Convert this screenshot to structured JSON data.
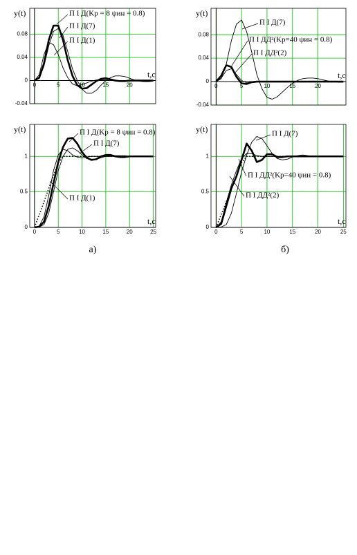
{
  "chart_data": [
    {
      "type": "line",
      "xlabel": "t,c",
      "ylabel": "y(t)",
      "grid": true,
      "xlim": [
        -1,
        25.5
      ],
      "ylim": [
        -0.04,
        0.125
      ],
      "xticks": [
        0,
        5,
        10,
        15,
        20
      ],
      "yticks": [
        -0.04,
        0,
        0.04,
        0.08
      ],
      "x": [
        0,
        1,
        2,
        3,
        4,
        5,
        6,
        7,
        8,
        9,
        10,
        11,
        12,
        13,
        14,
        15,
        16,
        17,
        18,
        19,
        20,
        21,
        22,
        23,
        24,
        25
      ],
      "series": [
        {
          "name": "П І Д(Kp = 8  ψин = 0.8)",
          "color": "#000000",
          "style": "thick",
          "values": [
            0,
            0.005,
            0.03,
            0.07,
            0.095,
            0.095,
            0.07,
            0.035,
            0.008,
            -0.008,
            -0.014,
            -0.013,
            -0.007,
            -0.001,
            0.003,
            0.004,
            0.002,
            0,
            -0.001,
            -0.001,
            0,
            0,
            0,
            0,
            0,
            0
          ]
        },
        {
          "name": "П І Д(7)",
          "color": "#000000",
          "style": "thin",
          "values": [
            0,
            0.004,
            0.025,
            0.06,
            0.085,
            0.09,
            0.078,
            0.05,
            0.02,
            0,
            -0.015,
            -0.022,
            -0.022,
            -0.017,
            -0.008,
            0,
            0.005,
            0.008,
            0.008,
            0.007,
            0.004,
            0.001,
            -0.001,
            -0.002,
            -0.002,
            -0.001
          ]
        },
        {
          "name": "П І Д(1)",
          "color": "#000000",
          "style": "thin",
          "values": [
            0,
            0.01,
            0.045,
            0.066,
            0.062,
            0.045,
            0.022,
            0.005,
            -0.006,
            -0.009,
            -0.007,
            -0.004,
            -0.001,
            0.001,
            0.001,
            0.001,
            0,
            0,
            0,
            0,
            0,
            0,
            0,
            0,
            0,
            0
          ]
        }
      ]
    },
    {
      "type": "line",
      "xlabel": "t,c",
      "ylabel": "y(t)",
      "grid": true,
      "xlim": [
        -1,
        25.5
      ],
      "ylim": [
        -0.04,
        0.125
      ],
      "xticks": [
        0,
        5,
        10,
        15,
        20
      ],
      "yticks": [
        -0.04,
        0,
        0.04,
        0.08
      ],
      "x": [
        0,
        1,
        2,
        3,
        4,
        5,
        6,
        7,
        8,
        9,
        10,
        11,
        12,
        13,
        14,
        15,
        16,
        17,
        18,
        19,
        20,
        21,
        22,
        23,
        24,
        25
      ],
      "series": [
        {
          "name": "П І Д(7)",
          "color": "#000000",
          "style": "thin",
          "values": [
            0,
            0.005,
            0.03,
            0.07,
            0.098,
            0.105,
            0.085,
            0.05,
            0.012,
            -0.012,
            -0.027,
            -0.03,
            -0.026,
            -0.018,
            -0.01,
            -0.003,
            0.002,
            0.005,
            0.006,
            0.006,
            0.005,
            0.003,
            0.001,
            0,
            -0.001,
            -0.001
          ]
        },
        {
          "name": "П І ДД²(Kp=40  ψин = 0.8)",
          "color": "#000000",
          "style": "thick",
          "values": [
            0,
            0.01,
            0.028,
            0.025,
            0.008,
            -0.003,
            -0.004,
            -0.001,
            0,
            0,
            0,
            0,
            0,
            0,
            0,
            0,
            0,
            0,
            0,
            0,
            0,
            0,
            0,
            0,
            0,
            0
          ]
        },
        {
          "name": "П І ДД²(2)",
          "color": "#000000",
          "style": "thin",
          "values": [
            0,
            0.006,
            0.019,
            0.022,
            0.012,
            0.002,
            -0.002,
            -0.001,
            0,
            0,
            0,
            0,
            0,
            0,
            0,
            0,
            0,
            0,
            0,
            0,
            0,
            0,
            0,
            0,
            0,
            0
          ]
        }
      ]
    },
    {
      "type": "line",
      "xlabel": "t,c",
      "ylabel": "y(t)",
      "caption": "а)",
      "grid": true,
      "xlim": [
        -1,
        25.5
      ],
      "ylim": [
        0,
        1.45
      ],
      "xticks": [
        0,
        5,
        10,
        15,
        20,
        25
      ],
      "yticks": [
        0,
        0.5,
        1
      ],
      "x": [
        0,
        1,
        2,
        3,
        4,
        5,
        6,
        7,
        8,
        9,
        10,
        11,
        12,
        13,
        14,
        15,
        16,
        17,
        18,
        19,
        20,
        21,
        22,
        23,
        24,
        25
      ],
      "series": [
        {
          "color": "#000000",
          "style": "dotted",
          "values": [
            0,
            0.18,
            0.36,
            0.55,
            0.73,
            0.91,
            1,
            1,
            1,
            1,
            1,
            1,
            1,
            1,
            1,
            1,
            1,
            1,
            1,
            1,
            1,
            1,
            1,
            1,
            1,
            1
          ]
        },
        {
          "name": "П І Д(Kp = 8  ψин = 0.8)",
          "color": "#000000",
          "style": "thick",
          "values": [
            0,
            0.01,
            0.08,
            0.3,
            0.62,
            0.92,
            1.13,
            1.25,
            1.26,
            1.18,
            1.06,
            0.98,
            0.95,
            0.96,
            1,
            1.02,
            1.02,
            1,
            0.99,
            0.99,
            1,
            1,
            1,
            1,
            1,
            1
          ]
        },
        {
          "name": "П І Д(7)",
          "color": "#000000",
          "style": "thin",
          "values": [
            0,
            0.005,
            0.04,
            0.2,
            0.5,
            0.8,
            1,
            1.1,
            1.12,
            1.08,
            1.02,
            0.97,
            0.96,
            0.96,
            0.98,
            1,
            1,
            1.01,
            1.01,
            1.01,
            1,
            1,
            1,
            1,
            1,
            1
          ]
        },
        {
          "name": "П І Д(1)",
          "color": "#000000",
          "style": "thin",
          "values": [
            0,
            0.02,
            0.15,
            0.45,
            0.8,
            1.02,
            1.1,
            1.08,
            1.02,
            0.99,
            0.98,
            0.99,
            1,
            1,
            1,
            1,
            1,
            1,
            1,
            1,
            1,
            1,
            1,
            1,
            1,
            1
          ]
        }
      ]
    },
    {
      "type": "line",
      "xlabel": "t,c",
      "ylabel": "y(t)",
      "caption": "б)",
      "grid": true,
      "xlim": [
        -1,
        25.5
      ],
      "ylim": [
        0,
        1.45
      ],
      "xticks": [
        0,
        5,
        10,
        15,
        20,
        25
      ],
      "yticks": [
        0,
        0.5,
        1
      ],
      "x": [
        0,
        1,
        2,
        3,
        4,
        5,
        6,
        7,
        8,
        9,
        10,
        11,
        12,
        13,
        14,
        15,
        16,
        17,
        18,
        19,
        20,
        21,
        22,
        23,
        24,
        25
      ],
      "series": [
        {
          "color": "#000000",
          "style": "dotted",
          "values": [
            0,
            0.18,
            0.36,
            0.55,
            0.73,
            0.91,
            1,
            1,
            1,
            1,
            1,
            1,
            1,
            1,
            1,
            1,
            1,
            1,
            1,
            1,
            1,
            1,
            1,
            1,
            1,
            1
          ]
        },
        {
          "name": "П І Д(7)",
          "color": "#000000",
          "style": "thin",
          "values": [
            0,
            0.005,
            0.04,
            0.2,
            0.48,
            0.78,
            1.02,
            1.2,
            1.28,
            1.25,
            1.15,
            1.04,
            0.97,
            0.95,
            0.96,
            0.99,
            1.01,
            1.02,
            1.01,
            1,
            1,
            1,
            1,
            1,
            1,
            1
          ]
        },
        {
          "name": "П І ДД²(Kp=40  ψин = 0.8)",
          "color": "#000000",
          "style": "thick",
          "values": [
            0,
            0.05,
            0.3,
            0.55,
            0.72,
            0.95,
            1.18,
            1.08,
            0.92,
            0.95,
            1.03,
            1.03,
            0.99,
            0.99,
            1,
            1,
            1,
            1,
            1,
            1,
            1,
            1,
            1,
            1,
            1,
            1
          ]
        },
        {
          "name": "П І ДД²(2)",
          "color": "#000000",
          "style": "thin",
          "values": [
            0,
            0.08,
            0.35,
            0.6,
            0.8,
            0.97,
            1.04,
            1.04,
            1.01,
            1,
            1,
            1,
            1,
            1,
            1,
            1,
            1,
            1,
            1,
            1,
            1,
            1,
            1,
            1,
            1,
            1
          ]
        }
      ]
    }
  ]
}
